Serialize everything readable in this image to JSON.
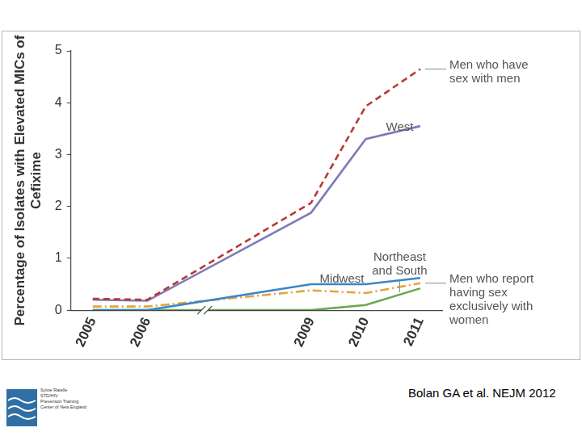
{
  "chart_data": {
    "type": "line",
    "y_label": "Percentage of Isolates with Elevated MICs of Cefixime",
    "x": [
      2005,
      2006,
      2009,
      2010,
      2011
    ],
    "xlim": [
      2004.6,
      2011.4
    ],
    "xticks": [
      2005,
      2006,
      2009,
      2010,
      2011
    ],
    "ylim": [
      0,
      5
    ],
    "yticks": [
      0,
      1,
      2,
      3,
      4,
      5
    ],
    "grid": false,
    "series": [
      {
        "name": "Men who have sex with men",
        "color": "#b83a32",
        "line_style": "dashed",
        "values": [
          0.22,
          0.2,
          2.07,
          3.93,
          4.65
        ]
      },
      {
        "name": "West",
        "color": "#7f7bb8",
        "line_style": "solid",
        "values": [
          0.2,
          0.18,
          1.88,
          3.3,
          3.55
        ]
      },
      {
        "name": "Midwest",
        "color": "#3a86c8",
        "line_style": "solid",
        "values": [
          0,
          0,
          0.5,
          0.5,
          0.62
        ]
      },
      {
        "name": "Northeast and South",
        "color": "#6aa84f",
        "line_style": "solid",
        "values": [
          0,
          0,
          0,
          0.1,
          0.42
        ]
      },
      {
        "name": "Men who report having sex exclusively with women",
        "color": "#e3a33c",
        "line_style": "dash-dot",
        "values": [
          0.07,
          0.07,
          0.38,
          0.33,
          0.52
        ]
      }
    ]
  },
  "footer": {
    "source": "Bolan GA et al. NEJM 2012",
    "logo_text": [
      "Sylvie Ratelle",
      "STD/HIV",
      "Prevention Training",
      "Center of New England"
    ]
  }
}
